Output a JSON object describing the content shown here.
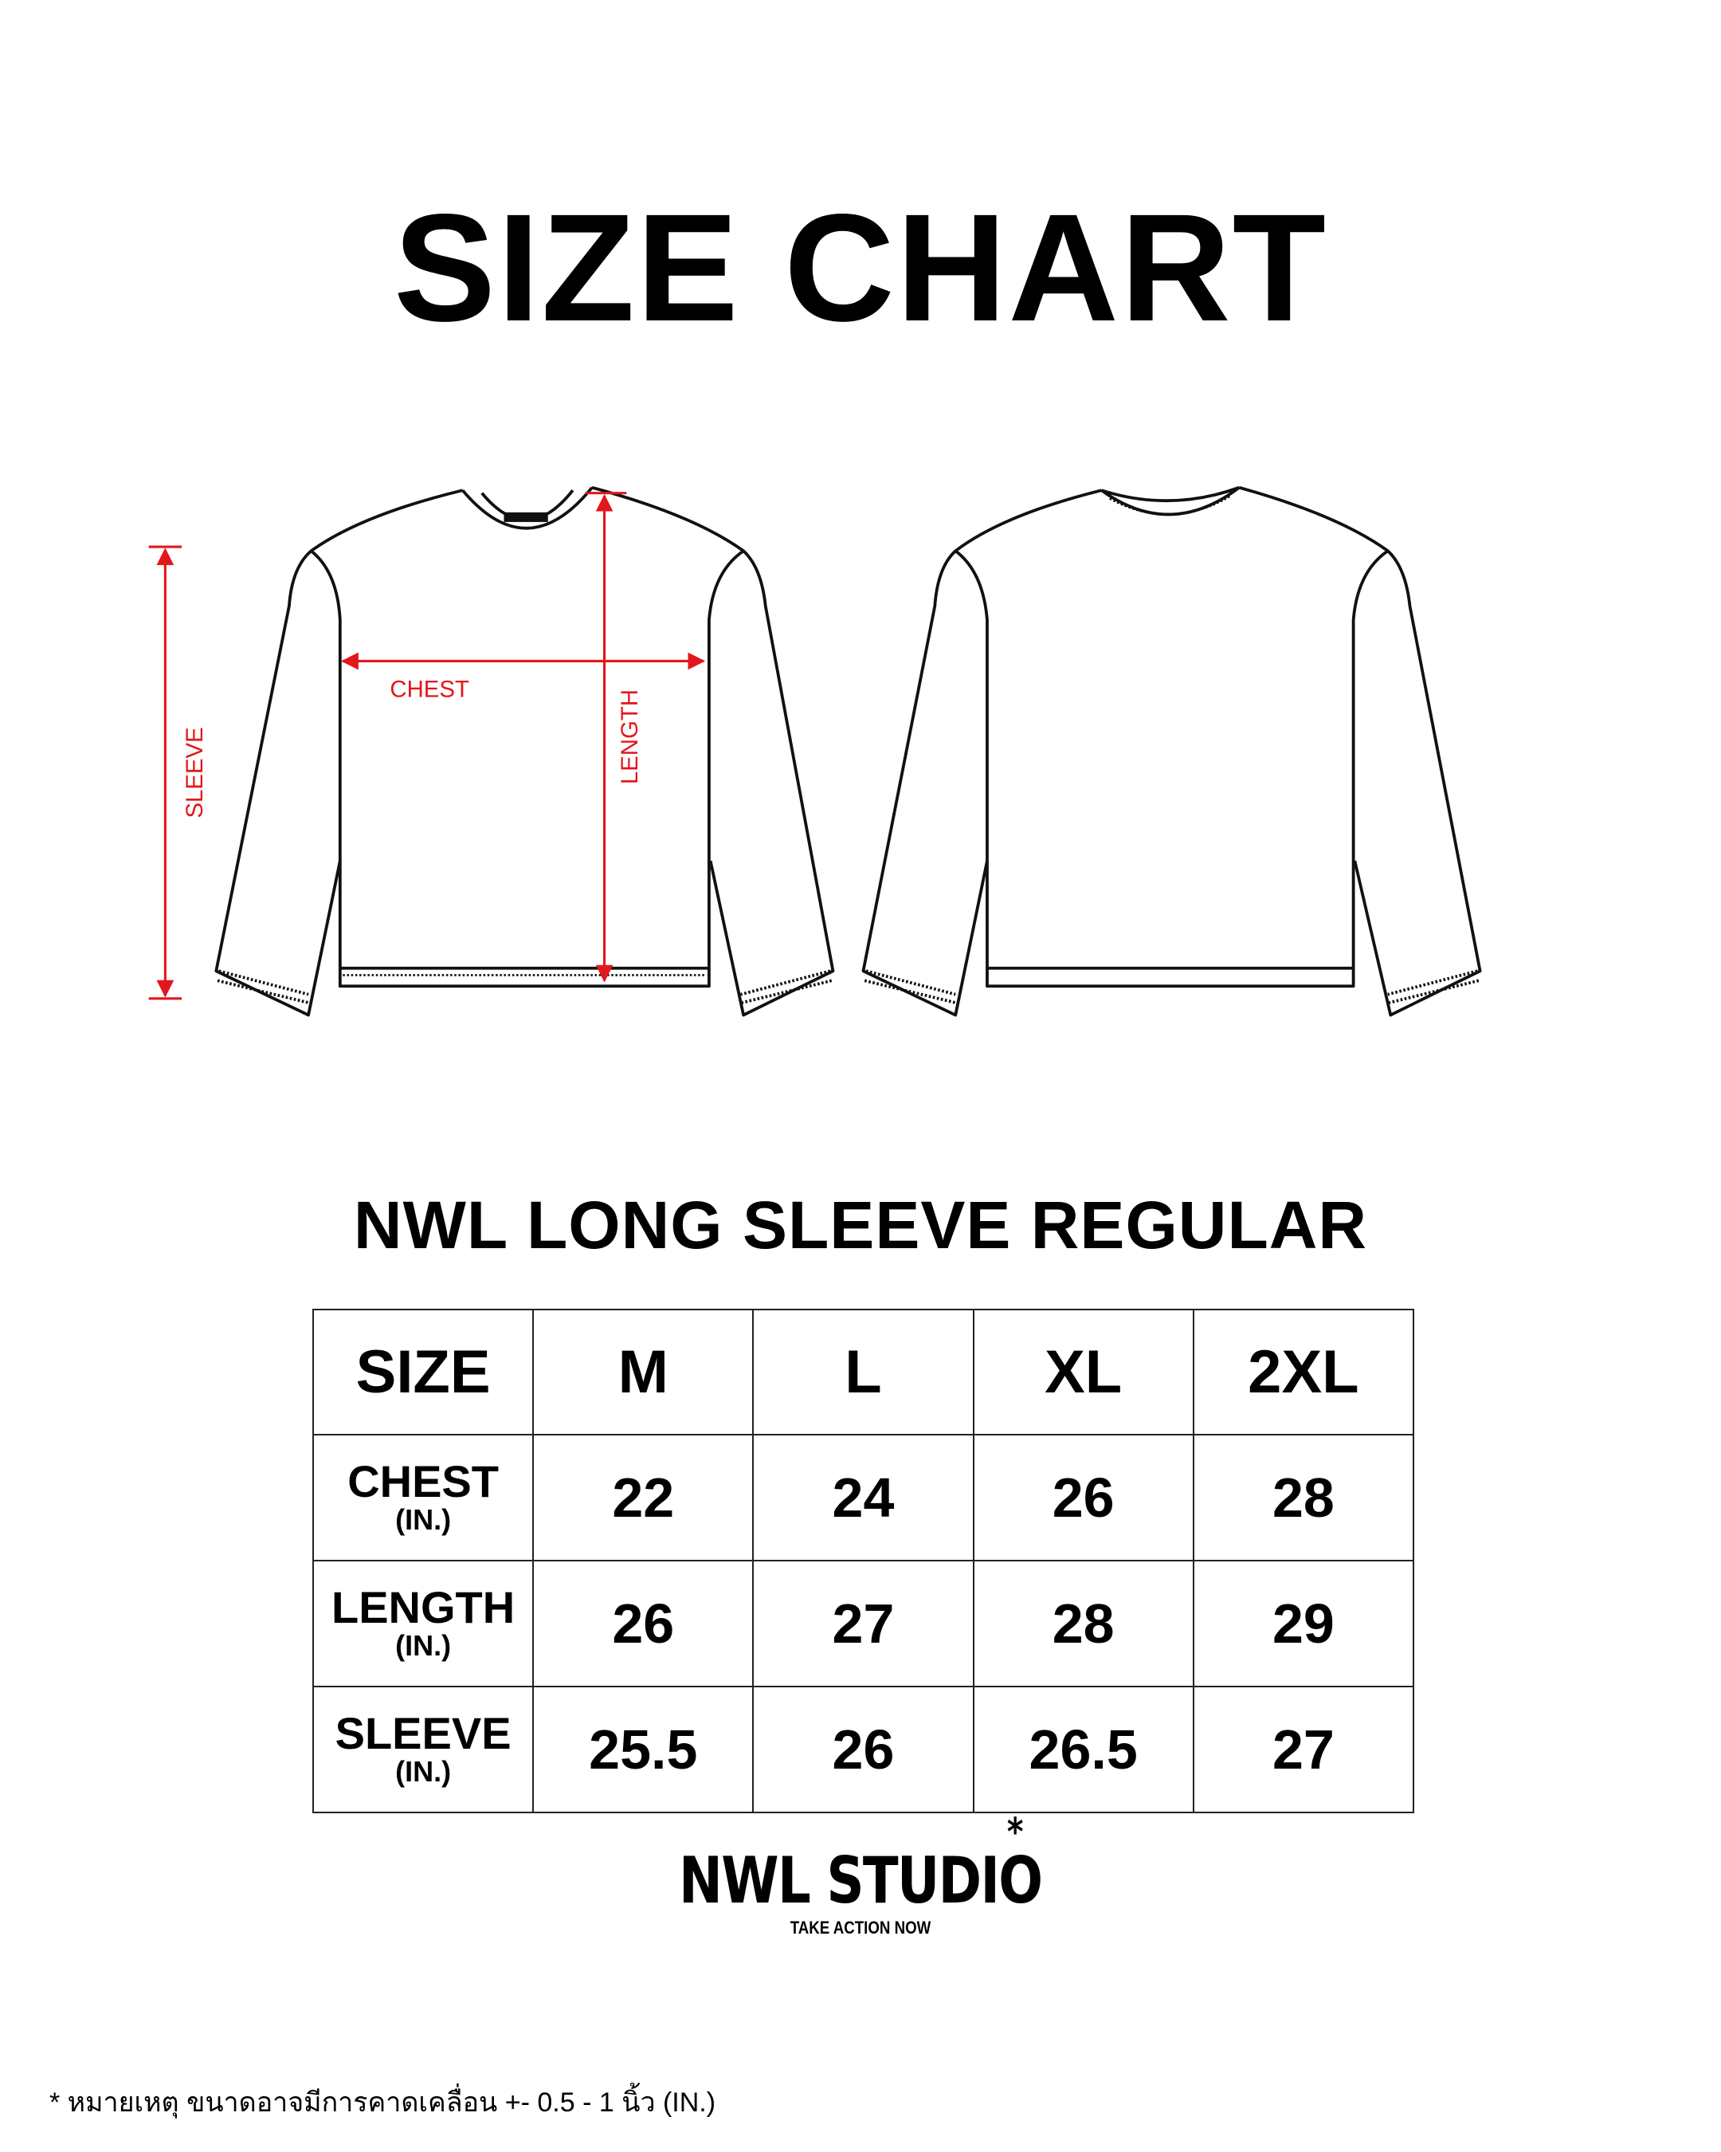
{
  "title": "SIZE CHART",
  "diagram": {
    "labels": {
      "chest": "CHEST",
      "length": "LENGTH",
      "sleeve": "SLEEVE"
    },
    "measure_color": "#e3161b",
    "views": [
      "front",
      "back"
    ]
  },
  "product_title": "NWL LONG SLEEVE REGULAR",
  "table": {
    "header": [
      "SIZE",
      "M",
      "L",
      "XL",
      "2XL"
    ],
    "rows": [
      {
        "label": "CHEST",
        "unit": "(IN.)",
        "values": [
          "22",
          "24",
          "26",
          "28"
        ]
      },
      {
        "label": "LENGTH",
        "unit": "(IN.)",
        "values": [
          "26",
          "27",
          "28",
          "29"
        ]
      },
      {
        "label": "SLEEVE",
        "unit": "(IN.)",
        "values": [
          "25.5",
          "26",
          "26.5",
          "27"
        ]
      }
    ]
  },
  "brand": {
    "name": "NWL STUDIO",
    "tagline": "TAKE ACTION NOW"
  },
  "footnote": "*  หมายเหตุ ขนาดอาจมีการคาดเคลื่อน +- 0.5 - 1 นิ้ว (IN.)"
}
